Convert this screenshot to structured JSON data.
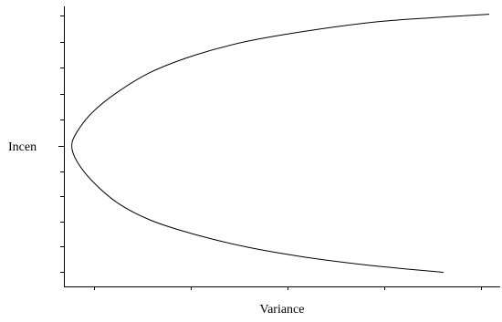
{
  "chart_data": {
    "type": "line",
    "title": "",
    "xlabel": "Variance",
    "ylabel": "Incen",
    "grid": false,
    "legend": "none",
    "x_ticks": 5,
    "y_ticks_below_mid": 5,
    "y_ticks_above_mid": 5,
    "xlim": [
      0,
      1
    ],
    "ylim": [
      -1,
      1
    ],
    "series": [
      {
        "color": "#000000",
        "points": [
          [
            0.975,
            0.944
          ],
          [
            0.85,
            0.92
          ],
          [
            0.72,
            0.89
          ],
          [
            0.57,
            0.83
          ],
          [
            0.42,
            0.75
          ],
          [
            0.3,
            0.65
          ],
          [
            0.2,
            0.53
          ],
          [
            0.125,
            0.39
          ],
          [
            0.065,
            0.24
          ],
          [
            0.03,
            0.1
          ],
          [
            0.018,
            0.0
          ],
          [
            0.03,
            -0.11
          ],
          [
            0.065,
            -0.25
          ],
          [
            0.125,
            -0.41
          ],
          [
            0.2,
            -0.53
          ],
          [
            0.3,
            -0.63
          ],
          [
            0.42,
            -0.72
          ],
          [
            0.55,
            -0.79
          ],
          [
            0.7,
            -0.85
          ],
          [
            0.87,
            -0.9
          ]
        ]
      }
    ]
  }
}
